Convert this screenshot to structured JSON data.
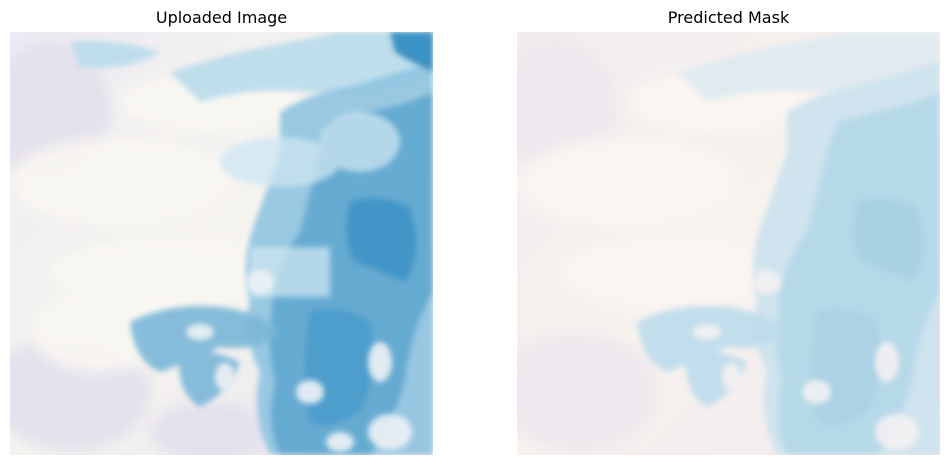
{
  "figure": {
    "panels": [
      {
        "title": "Uploaded Image",
        "content": "satellite imagery of snow/cloud cover with blue water regions"
      },
      {
        "title": "Predicted Mask",
        "content": "segmentation mask overlay in pale blue tones"
      }
    ]
  },
  "colors": {
    "background_light": "#f6f3ee",
    "haze_lavender": "#e6e2ee",
    "water_mid": "#5ea7cf",
    "water_deep": "#2f8ac0",
    "mask_base": "#f7efee",
    "mask_blue": "#a7d0e4"
  }
}
